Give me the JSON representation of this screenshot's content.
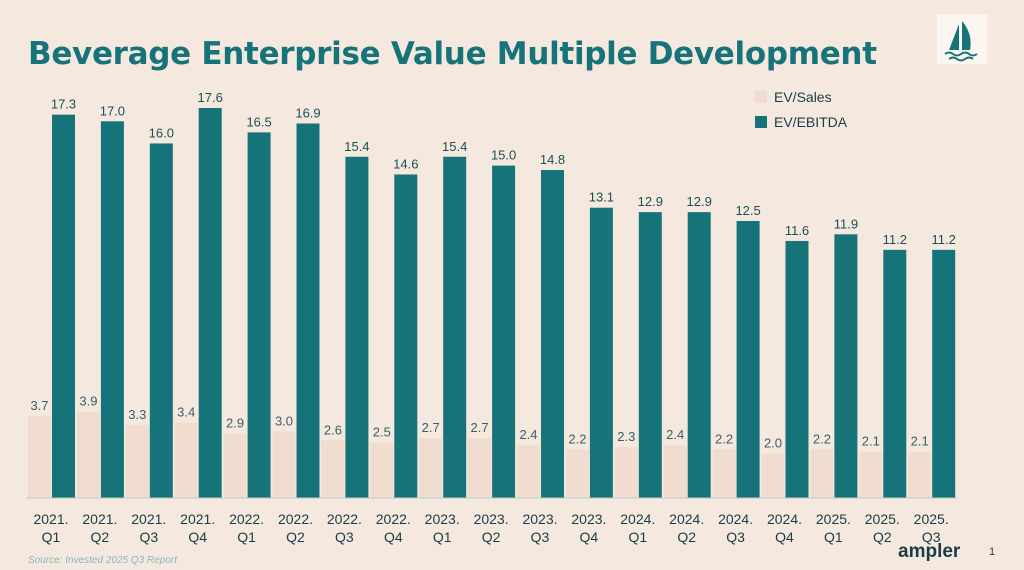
{
  "title": "Beverage Enterprise Value Multiple Development",
  "source": "Source: Invested 2025 Q3 Report",
  "brand": "ampler",
  "page_number": "1",
  "logo": "sailboat-logo-icon",
  "colors": {
    "background": "#f5e9df",
    "ev_sales": "#f0ddd0",
    "ev_ebitda": "#16737a",
    "title": "#16737a",
    "text": "#1a3c46"
  },
  "chart_data": {
    "type": "bar",
    "categories": [
      "2021. Q1",
      "2021. Q2",
      "2021. Q3",
      "2021. Q4",
      "2022. Q1",
      "2022. Q2",
      "2022. Q3",
      "2022. Q4",
      "2023. Q1",
      "2023. Q2",
      "2023. Q3",
      "2023. Q4",
      "2024. Q1",
      "2024. Q2",
      "2024. Q3",
      "2024. Q4",
      "2025. Q1",
      "2025. Q2",
      "2025. Q3"
    ],
    "series": [
      {
        "name": "EV/Sales",
        "color": "#f0ddd0",
        "values": [
          3.7,
          3.9,
          3.3,
          3.4,
          2.9,
          3.0,
          2.6,
          2.5,
          2.7,
          2.7,
          2.4,
          2.2,
          2.3,
          2.4,
          2.2,
          2.0,
          2.2,
          2.1,
          2.1
        ]
      },
      {
        "name": "EV/EBITDA",
        "color": "#16737a",
        "values": [
          17.3,
          17.0,
          16.0,
          17.6,
          16.5,
          16.9,
          15.4,
          14.6,
          15.4,
          15.0,
          14.8,
          13.1,
          12.9,
          12.9,
          12.5,
          11.6,
          11.9,
          11.2,
          11.2
        ]
      }
    ],
    "ylim": [
      0,
      17.6
    ],
    "legend": "top-right",
    "grid": false
  }
}
